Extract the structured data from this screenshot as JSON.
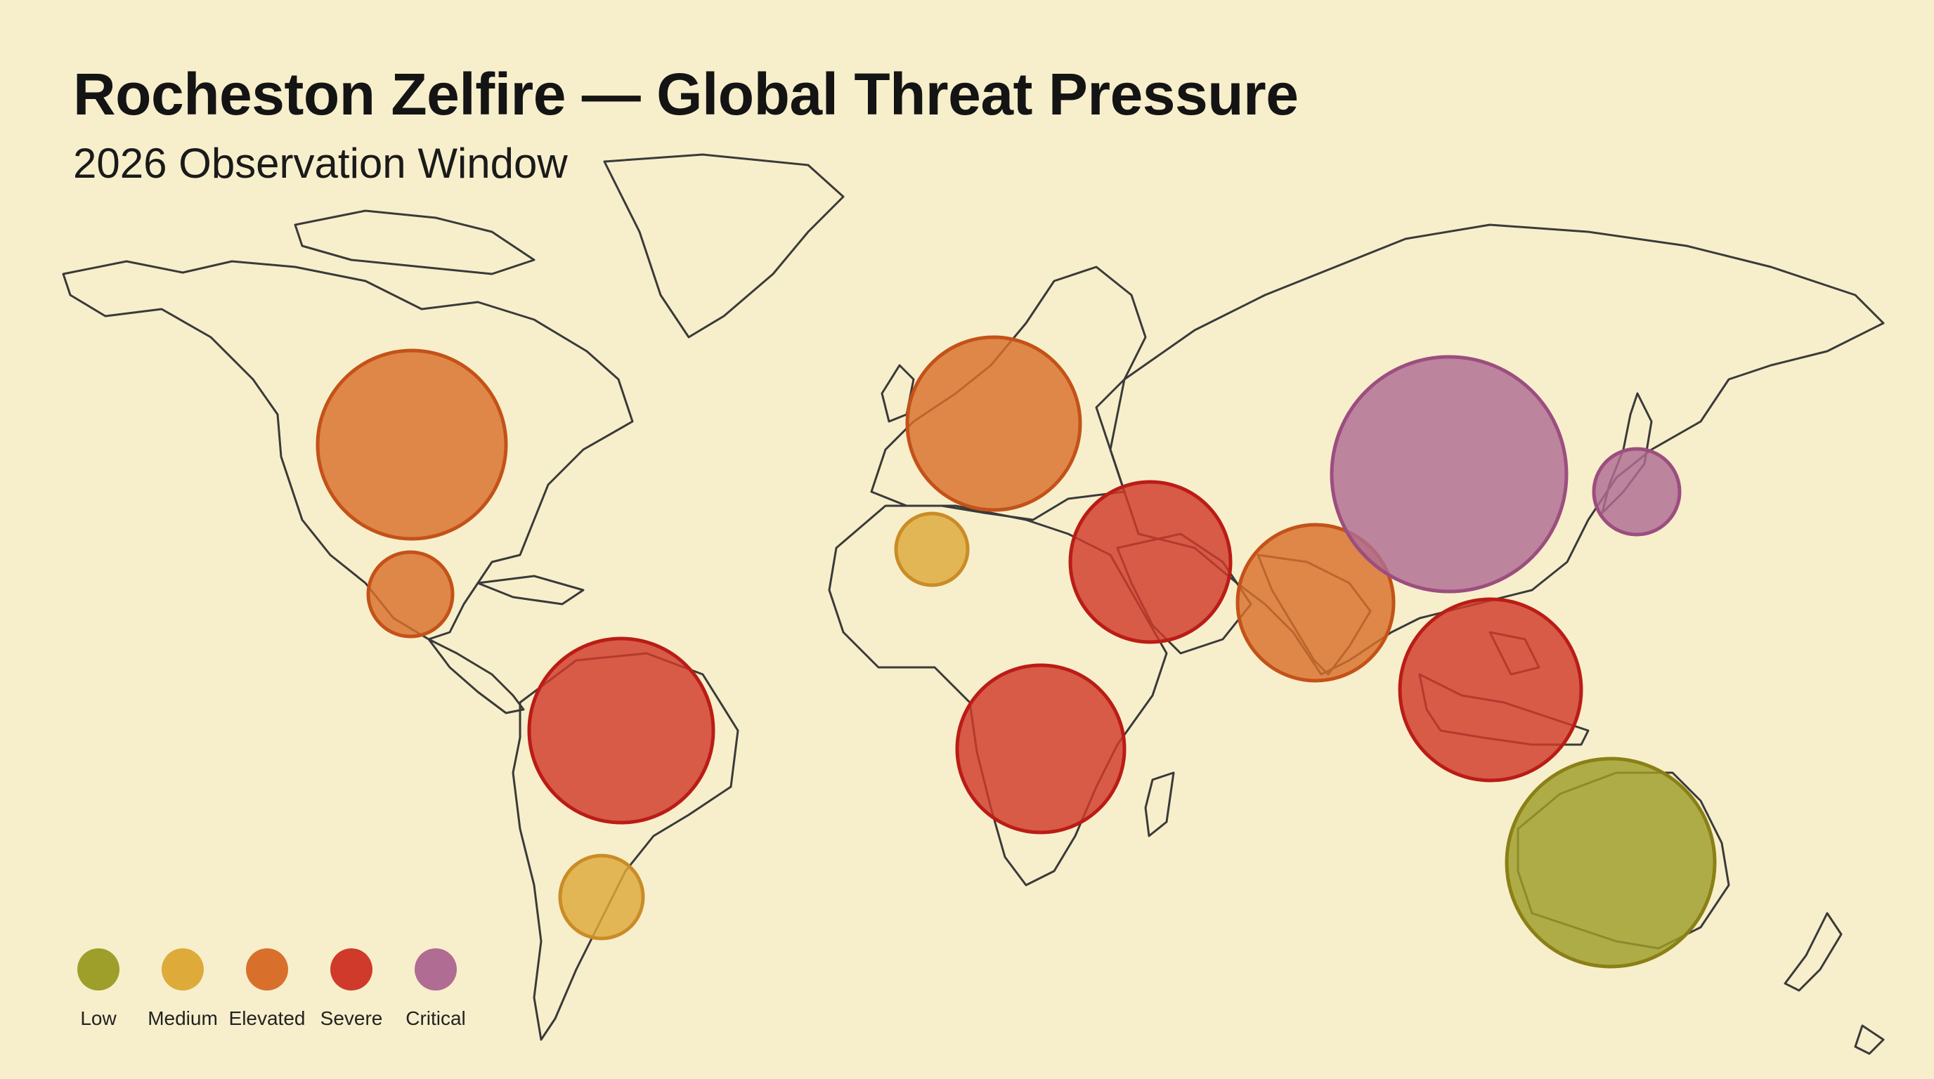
{
  "title": "Rocheston Zelfire — Global Threat Pressure",
  "subtitle": "2026 Observation Window",
  "colors": {
    "background": "#f7efcb",
    "outline": "#3a3a3a",
    "low": "#9e9e2a",
    "medium": "#deaa3a",
    "elevated": "#d8702c",
    "severe": "#cf3a2a",
    "critical": "#b06c93"
  },
  "legend": [
    {
      "level": "low",
      "label": "Low"
    },
    {
      "level": "medium",
      "label": "Medium"
    },
    {
      "level": "elevated",
      "label": "Elevated"
    },
    {
      "level": "severe",
      "label": "Severe"
    },
    {
      "level": "critical",
      "label": "Critical"
    }
  ],
  "regions": [
    {
      "name": "north-america",
      "level": "elevated"
    },
    {
      "name": "mexico",
      "level": "elevated"
    },
    {
      "name": "south-america-north",
      "level": "severe"
    },
    {
      "name": "south-america-south",
      "level": "medium"
    },
    {
      "name": "europe",
      "level": "elevated"
    },
    {
      "name": "north-africa",
      "level": "medium"
    },
    {
      "name": "middle-east",
      "level": "severe"
    },
    {
      "name": "central-africa",
      "level": "severe"
    },
    {
      "name": "south-asia",
      "level": "elevated"
    },
    {
      "name": "east-asia",
      "level": "critical"
    },
    {
      "name": "japan",
      "level": "critical"
    },
    {
      "name": "southeast-asia",
      "level": "severe"
    },
    {
      "name": "australia",
      "level": "low"
    }
  ]
}
